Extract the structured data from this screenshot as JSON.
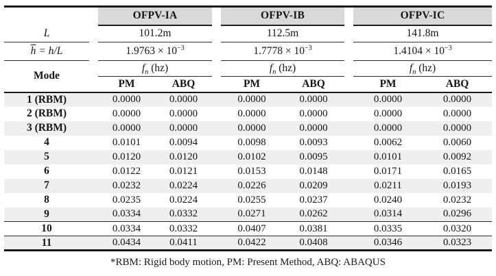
{
  "header": {
    "groups": [
      "OFPV-IA",
      "OFPV-IB",
      "OFPV-IC"
    ],
    "sub": [
      "PM",
      "ABQ",
      "PM",
      "ABQ",
      "PM",
      "ABQ"
    ]
  },
  "params": {
    "L_label": "L",
    "L_values": [
      "101.2m",
      "112.5m",
      "141.8m"
    ],
    "h_bar": "h",
    "h_rest": " = h/L",
    "h_values": [
      {
        "base": "1.9763 × 10",
        "exp": "−3"
      },
      {
        "base": "1.7778 × 10",
        "exp": "−3"
      },
      {
        "base": "1.4104 × 10",
        "exp": "−3"
      }
    ],
    "mode_label": "Mode",
    "freq_f": "f",
    "freq_sub": "n",
    "freq_unit": " (hz)"
  },
  "rows": [
    {
      "mode": "1 (RBM)",
      "values": [
        "0.0000",
        "0.0000",
        "0.0000",
        "0.0000",
        "0.0000",
        "0.0000"
      ]
    },
    {
      "mode": "2 (RBM)",
      "values": [
        "0.0000",
        "0.0000",
        "0.0000",
        "0.0000",
        "0.0000",
        "0.0000"
      ]
    },
    {
      "mode": "3 (RBM)",
      "values": [
        "0.0000",
        "0.0000",
        "0.0000",
        "0.0000",
        "0.0000",
        "0.0000"
      ]
    },
    {
      "mode": "4",
      "values": [
        "0.0101",
        "0.0094",
        "0.0098",
        "0.0093",
        "0.0062",
        "0.0060"
      ]
    },
    {
      "mode": "5",
      "values": [
        "0.0120",
        "0.0120",
        "0.0102",
        "0.0095",
        "0.0101",
        "0.0092"
      ]
    },
    {
      "mode": "6",
      "values": [
        "0.0122",
        "0.0121",
        "0.0153",
        "0.0148",
        "0.0171",
        "0.0165"
      ]
    },
    {
      "mode": "7",
      "values": [
        "0.0232",
        "0.0224",
        "0.0226",
        "0.0209",
        "0.0211",
        "0.0193"
      ]
    },
    {
      "mode": "8",
      "values": [
        "0.0235",
        "0.0224",
        "0.0255",
        "0.0237",
        "0.0240",
        "0.0232"
      ]
    },
    {
      "mode": "9",
      "values": [
        "0.0334",
        "0.0332",
        "0.0271",
        "0.0262",
        "0.0314",
        "0.0296"
      ]
    },
    {
      "mode": "10",
      "values": [
        "0.0334",
        "0.0332",
        "0.0407",
        "0.0381",
        "0.0335",
        "0.0320"
      ]
    },
    {
      "mode": "11",
      "values": [
        "0.0434",
        "0.0411",
        "0.0422",
        "0.0408",
        "0.0346",
        "0.0323"
      ]
    }
  ],
  "footnote": "*RBM: Rigid body motion, PM: Present Method, ABQ: ABAQUS",
  "colors": {
    "header_bg": "#d9d9d9",
    "row_alt_bg": "#efefef",
    "rule": "#161616"
  }
}
